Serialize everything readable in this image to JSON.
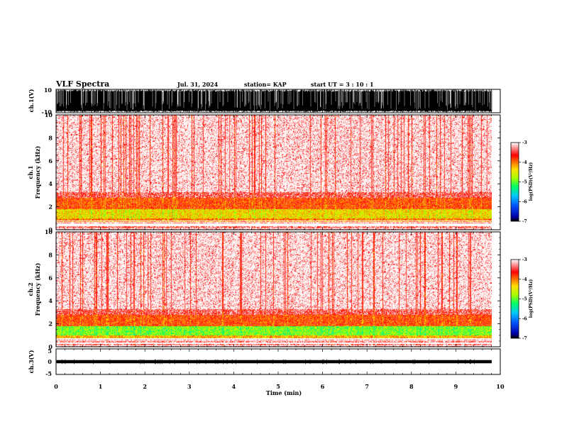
{
  "header": {
    "title": "VLF Spectra",
    "date": "Jul. 31, 2024",
    "station": "station= KAP",
    "start": "start  UT =  3 : 10 : 1"
  },
  "chart_data": [
    {
      "type": "line",
      "panel": "ch1-waveform",
      "ylabel": "ch.1(V)",
      "ylim": [
        -10,
        10
      ],
      "yticks": [
        "10",
        "-10"
      ],
      "description_values": {
        "amplitude_range": [
          -10,
          10
        ],
        "baseline": -8
      }
    },
    {
      "type": "heatmap",
      "panel": "ch1-spectrogram",
      "ylabel": "ch.1\nFrequency (kHz)",
      "ylabel_line1": "ch.1",
      "ylabel_line2": "Frequency  (kHz)",
      "ylim": [
        0,
        10
      ],
      "yticks": [
        "0",
        "2",
        "4",
        "6",
        "8",
        "10"
      ],
      "xlim": [
        0,
        9.8
      ],
      "bands": [
        {
          "f_from": 0.0,
          "f_to": 0.7,
          "level": -3.3
        },
        {
          "f_from": 0.7,
          "f_to": 1.0,
          "level": -4.0
        },
        {
          "f_from": 1.0,
          "f_to": 1.8,
          "level": -4.4
        },
        {
          "f_from": 1.8,
          "f_to": 2.8,
          "level": -3.8
        },
        {
          "f_from": 2.8,
          "f_to": 3.3,
          "level": -3.4
        },
        {
          "f_from": 3.3,
          "f_to": 10.0,
          "level": -3.05
        }
      ],
      "colorbar": {
        "label": "log(PSD)(V²/Hz)",
        "min": -7,
        "max": -3,
        "ticks": [
          "-3",
          "-4",
          "-5",
          "-6",
          "-7"
        ]
      }
    },
    {
      "type": "heatmap",
      "panel": "ch2-spectrogram",
      "ylabel_line1": "ch.2",
      "ylabel_line2": "Frequency  (kHz)",
      "ylim": [
        0,
        10
      ],
      "yticks": [
        "0",
        "2",
        "4",
        "6",
        "8",
        "10"
      ],
      "xlim": [
        0,
        9.8
      ],
      "bands": [
        {
          "f_from": 0.0,
          "f_to": 0.7,
          "level": -3.3
        },
        {
          "f_from": 0.7,
          "f_to": 1.0,
          "level": -4.2
        },
        {
          "f_from": 1.0,
          "f_to": 1.8,
          "level": -4.9
        },
        {
          "f_from": 1.8,
          "f_to": 2.8,
          "level": -3.8
        },
        {
          "f_from": 2.8,
          "f_to": 3.3,
          "level": -3.4
        },
        {
          "f_from": 3.3,
          "f_to": 10.0,
          "level": -3.05
        }
      ],
      "colorbar": {
        "label": "log(PSD)(V²/Hz)",
        "min": -7,
        "max": -3,
        "ticks": [
          "-3",
          "-4",
          "-5",
          "-6",
          "-7"
        ]
      }
    },
    {
      "type": "line",
      "panel": "ch3-waveform",
      "ylabel": "ch.3(V)",
      "ylim": [
        -5,
        5
      ],
      "yticks": [
        "5",
        "0",
        "-5"
      ],
      "description_values": {
        "amplitude_range": [
          -0.6,
          0.6
        ],
        "baseline": 0
      }
    }
  ],
  "xaxis": {
    "label": "Time  (min)",
    "xlim": [
      0,
      10
    ],
    "ticks": [
      "0",
      "1",
      "2",
      "3",
      "4",
      "5",
      "6",
      "7",
      "8",
      "9",
      "10"
    ]
  },
  "colors": {
    "trace": "#000000",
    "background_hi": "#ff0000",
    "band_mid": "#ff3300",
    "band_low": "#ffd200",
    "band_green": "#aaff00"
  }
}
